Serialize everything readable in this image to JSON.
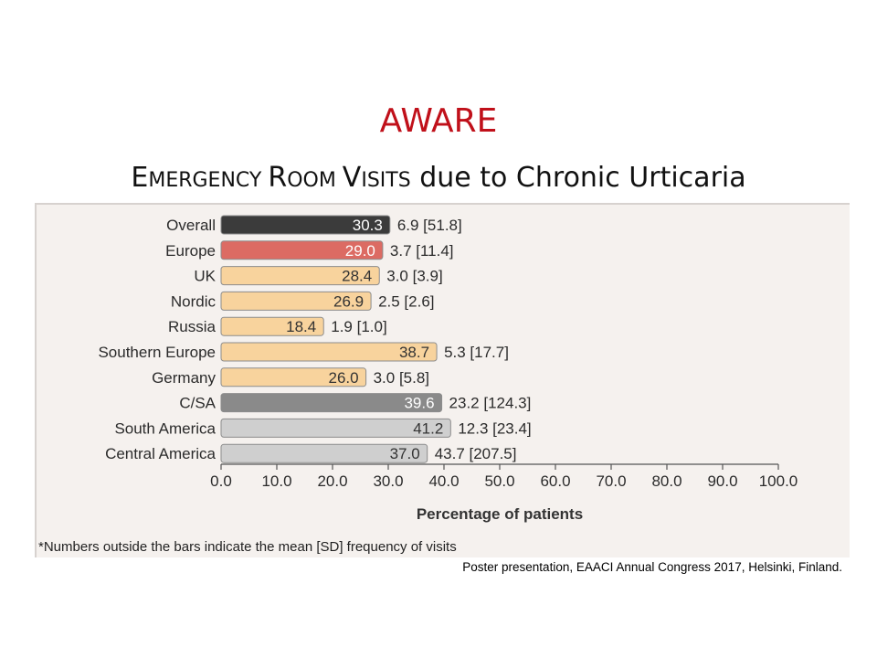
{
  "slide": {
    "title": "AWARE",
    "subtitle_parts": [
      "E",
      "MERGENCY ",
      "R",
      "OOM ",
      "V",
      "ISITS",
      " due to Chronic Urticaria"
    ],
    "footnote": "*Numbers outside the bars indicate the mean [SD] frequency of visits",
    "source": "Poster presentation, EAACI Annual Congress 2017, Helsinki, Finland."
  },
  "chart_data": {
    "type": "bar",
    "orientation": "horizontal",
    "xlabel": "Percentage of patients",
    "xlim": [
      0,
      100
    ],
    "xticks": [
      "0.0",
      "10.0",
      "20.0",
      "30.0",
      "40.0",
      "50.0",
      "60.0",
      "70.0",
      "80.0",
      "90.0",
      "100.0"
    ],
    "grid": false,
    "categories": [
      "Overall",
      "Europe",
      "UK",
      "Nordic",
      "Russia",
      "Southern Europe",
      "Germany",
      "C/SA",
      "South America",
      "Central America"
    ],
    "values": [
      30.3,
      29.0,
      28.4,
      26.9,
      18.4,
      38.7,
      26.0,
      39.6,
      41.2,
      37.0
    ],
    "value_labels": [
      "30.3",
      "29.0",
      "28.4",
      "26.9",
      "18.4",
      "38.7",
      "26.0",
      "39.6",
      "41.2",
      "37.0"
    ],
    "annotations": [
      "6.9 [51.8]",
      "3.7 [11.4]",
      "3.0 [3.9]",
      "2.5 [2.6]",
      "1.9 [1.0]",
      "5.3 [17.7]",
      "3.0 [5.8]",
      "23.2 [124.3]",
      "12.3 [23.4]",
      "43.7 [207.5]"
    ],
    "bar_colors": [
      "#3b3b3b",
      "#dc6b63",
      "#f8d39d",
      "#f8d39d",
      "#f8d39d",
      "#f8d39d",
      "#f8d39d",
      "#8a8a8a",
      "#cfcfcf",
      "#cfcfcf"
    ],
    "label_colors": [
      "#ffffff",
      "#ffffff",
      "#333333",
      "#333333",
      "#333333",
      "#333333",
      "#333333",
      "#ffffff",
      "#333333",
      "#333333"
    ]
  }
}
